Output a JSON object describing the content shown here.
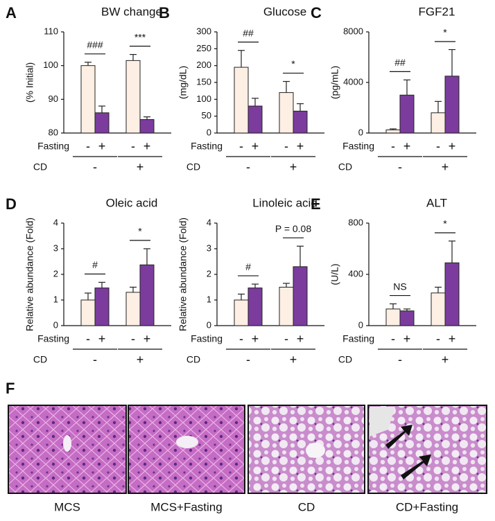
{
  "chart_data": [
    {
      "type": "bar",
      "panel": "A",
      "title": "BW change",
      "y_label": "(% Initial)",
      "ylim": [
        80,
        110
      ],
      "yticks": [
        80,
        90,
        100,
        110
      ],
      "row_labels": [
        "Fasting",
        "CD"
      ],
      "categories": [
        "-",
        "+",
        "-",
        "+"
      ],
      "groups": [
        "-",
        "+"
      ],
      "values": [
        100,
        86,
        101.5,
        84
      ],
      "errors": [
        1,
        2,
        1.8,
        0.8
      ],
      "colors": [
        "#fdefe3",
        "#7b3c9e"
      ],
      "group_annotations": [
        "###",
        "***"
      ]
    },
    {
      "type": "bar",
      "panel": "B",
      "title": "Glucose",
      "y_label": "(mg/dL)",
      "ylim": [
        0,
        300
      ],
      "yticks": [
        0,
        50,
        100,
        150,
        200,
        250,
        300
      ],
      "row_labels": [
        "Fasting",
        "CD"
      ],
      "categories": [
        "-",
        "+",
        "-",
        "+"
      ],
      "groups": [
        "-",
        "+"
      ],
      "values": [
        195,
        80,
        120,
        65
      ],
      "errors": [
        50,
        23,
        33,
        22
      ],
      "colors": [
        "#fdefe3",
        "#7b3c9e"
      ],
      "group_annotations": [
        "##",
        "*"
      ]
    },
    {
      "type": "bar",
      "panel": "C",
      "title": "FGF21",
      "y_label": "(pg/mL)",
      "ylim": [
        0,
        8000
      ],
      "yticks": [
        0,
        4000,
        8000
      ],
      "row_labels": [
        "Fasting",
        "CD"
      ],
      "categories": [
        "-",
        "+",
        "-",
        "+"
      ],
      "groups": [
        "-",
        "+"
      ],
      "values": [
        250,
        3000,
        1600,
        4500
      ],
      "errors": [
        80,
        1200,
        900,
        2100
      ],
      "colors": [
        "#fdefe3",
        "#7b3c9e"
      ],
      "group_annotations": [
        "##",
        "*"
      ]
    },
    {
      "type": "bar",
      "panel": "D",
      "title": "Oleic acid",
      "y_label": "Relative abundance (Fold)",
      "ylim": [
        0,
        4
      ],
      "yticks": [
        0,
        1,
        2,
        3,
        4
      ],
      "row_labels": [
        "Fasting",
        "CD"
      ],
      "categories": [
        "-",
        "+",
        "-",
        "+"
      ],
      "groups": [
        "-",
        "+"
      ],
      "values": [
        1.0,
        1.47,
        1.3,
        2.37
      ],
      "errors": [
        0.27,
        0.22,
        0.2,
        0.63
      ],
      "colors": [
        "#fdefe3",
        "#7b3c9e"
      ],
      "group_annotations": [
        "#",
        "*"
      ]
    },
    {
      "type": "bar",
      "title": "Linoleic acid",
      "y_label": "Relative abundance (Fold)",
      "ylim": [
        0,
        4
      ],
      "yticks": [
        0,
        1,
        2,
        3,
        4
      ],
      "row_labels": [
        "Fasting",
        "CD"
      ],
      "categories": [
        "-",
        "+",
        "-",
        "+"
      ],
      "groups": [
        "-",
        "+"
      ],
      "values": [
        1.0,
        1.47,
        1.5,
        2.3
      ],
      "errors": [
        0.23,
        0.15,
        0.15,
        0.8
      ],
      "colors": [
        "#fdefe3",
        "#7b3c9e"
      ],
      "group_annotations": [
        "#",
        "P = 0.08"
      ]
    },
    {
      "type": "bar",
      "panel": "E",
      "title": "ALT",
      "y_label": "(U/L)",
      "ylim": [
        0,
        800
      ],
      "yticks": [
        0,
        400,
        800
      ],
      "row_labels": [
        "Fasting",
        "CD"
      ],
      "categories": [
        "-",
        "+",
        "-",
        "+"
      ],
      "groups": [
        "-",
        "+"
      ],
      "values": [
        130,
        115,
        255,
        490
      ],
      "errors": [
        40,
        15,
        45,
        170
      ],
      "colors": [
        "#fdefe3",
        "#7b3c9e"
      ],
      "group_annotations": [
        "NS",
        "*"
      ]
    }
  ],
  "figure_f": {
    "label": "F",
    "captions": [
      "MCS",
      "MCS+Fasting",
      "CD",
      "CD+Fasting"
    ]
  }
}
